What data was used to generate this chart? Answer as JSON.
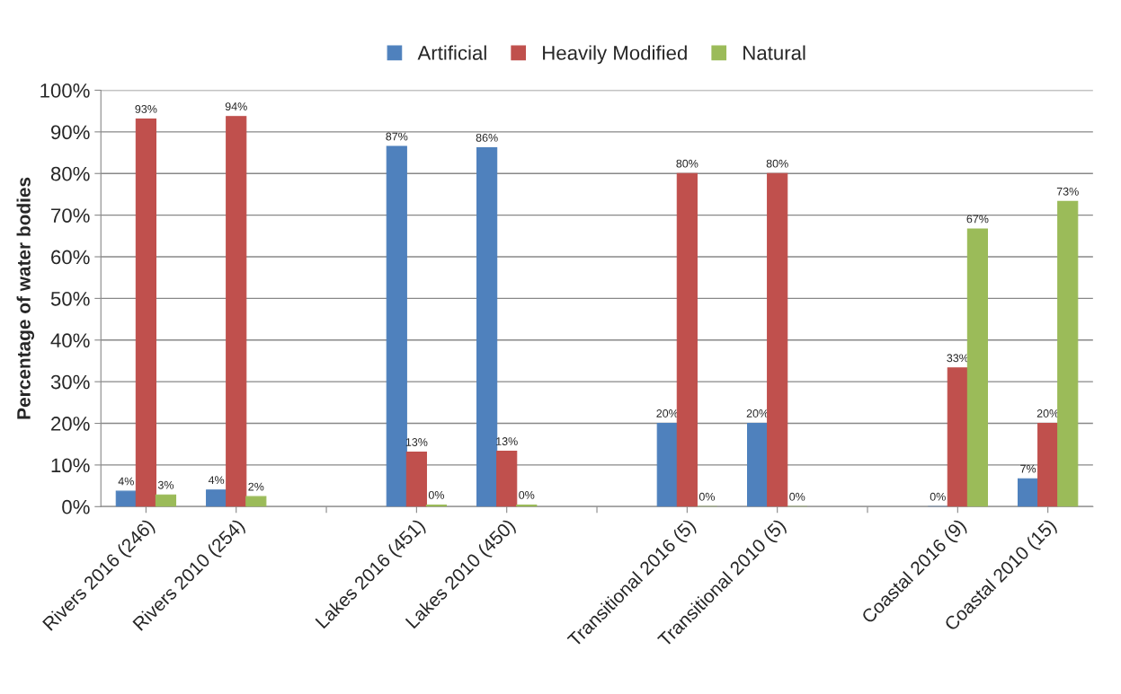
{
  "chart_data": {
    "type": "bar",
    "ylabel": "Percentage of water bodies",
    "categories": [
      "Rivers 2016 (246)",
      "Rivers 2010 (254)",
      null,
      "Lakes 2016 (451)",
      "Lakes 2010 (450)",
      null,
      "Transitional 2016 (5)",
      "Transitional 2010 (5)",
      null,
      "Coastal 2016 (9)",
      "Coastal 2010 (15)"
    ],
    "series": [
      {
        "name": "Artificial",
        "color": "#4f81bd",
        "values": [
          3.7,
          4.0,
          null,
          86.5,
          86.2,
          null,
          20,
          20,
          null,
          0,
          6.7
        ],
        "value_labels": [
          "4%",
          "4%",
          null,
          "87%",
          "86%",
          null,
          "20%",
          "20%",
          null,
          "0%",
          "7%"
        ]
      },
      {
        "name": "Heavily Modified",
        "color": "#c0504d",
        "values": [
          93.1,
          93.7,
          null,
          13.1,
          13.3,
          null,
          80,
          80,
          null,
          33.3,
          20
        ],
        "value_labels": [
          "93%",
          "94%",
          null,
          "13%",
          "13%",
          null,
          "80%",
          "80%",
          null,
          "33%",
          "20%"
        ]
      },
      {
        "name": "Natural",
        "color": "#9bbb59",
        "values": [
          2.8,
          2.4,
          null,
          0.4,
          0.4,
          null,
          0,
          0,
          null,
          66.7,
          73.3
        ],
        "value_labels": [
          "3%",
          "2%",
          null,
          "0%",
          "0%",
          null,
          "0%",
          "0%",
          null,
          "67%",
          "73%"
        ]
      }
    ],
    "ylim": [
      0,
      100
    ],
    "yticks": [
      {
        "value": 0,
        "label": "0%"
      },
      {
        "value": 10,
        "label": "10%"
      },
      {
        "value": 20,
        "label": "20%"
      },
      {
        "value": 30,
        "label": "30%"
      },
      {
        "value": 40,
        "label": "40%"
      },
      {
        "value": 50,
        "label": "50%"
      },
      {
        "value": 60,
        "label": "60%"
      },
      {
        "value": 70,
        "label": "70%"
      },
      {
        "value": 80,
        "label": "80%"
      },
      {
        "value": 90,
        "label": "90%"
      },
      {
        "value": 100,
        "label": "100%"
      }
    ],
    "grid": "y",
    "legend": "top"
  }
}
